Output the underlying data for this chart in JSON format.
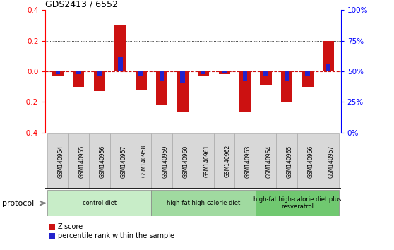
{
  "title": "GDS2413 / 6552",
  "samples": [
    "GSM140954",
    "GSM140955",
    "GSM140956",
    "GSM140957",
    "GSM140958",
    "GSM140959",
    "GSM140960",
    "GSM140961",
    "GSM140962",
    "GSM140963",
    "GSM140964",
    "GSM140965",
    "GSM140966",
    "GSM140967"
  ],
  "zscore": [
    -0.03,
    -0.1,
    -0.13,
    0.3,
    -0.12,
    -0.22,
    -0.27,
    -0.03,
    -0.02,
    -0.27,
    -0.09,
    -0.2,
    -0.1,
    0.2
  ],
  "percentile": [
    -0.02,
    -0.02,
    -0.03,
    0.09,
    -0.03,
    -0.06,
    -0.08,
    -0.02,
    -0.01,
    -0.06,
    -0.03,
    -0.06,
    -0.03,
    0.05
  ],
  "groups": [
    {
      "label": "control diet",
      "start": 0,
      "end": 5,
      "color": "#c8edc8"
    },
    {
      "label": "high-fat high-calorie diet",
      "start": 5,
      "end": 10,
      "color": "#a0daa0"
    },
    {
      "label": "high-fat high-calorie diet plus\nresveratrol",
      "start": 10,
      "end": 14,
      "color": "#70c870"
    }
  ],
  "bar_width": 0.55,
  "zscore_color": "#cc1111",
  "pct_color": "#2222cc",
  "ylim": [
    -0.4,
    0.4
  ],
  "y2lim": [
    0,
    100
  ],
  "y2ticks": [
    0,
    25,
    50,
    75,
    100
  ],
  "y2ticklabels": [
    "0%",
    "25%",
    "50%",
    "75%",
    "100%"
  ],
  "yticks": [
    -0.4,
    -0.2,
    0.0,
    0.2,
    0.4
  ],
  "background": "#ffffff",
  "hline_color": "#cc1111",
  "dotted_color": "#000000"
}
